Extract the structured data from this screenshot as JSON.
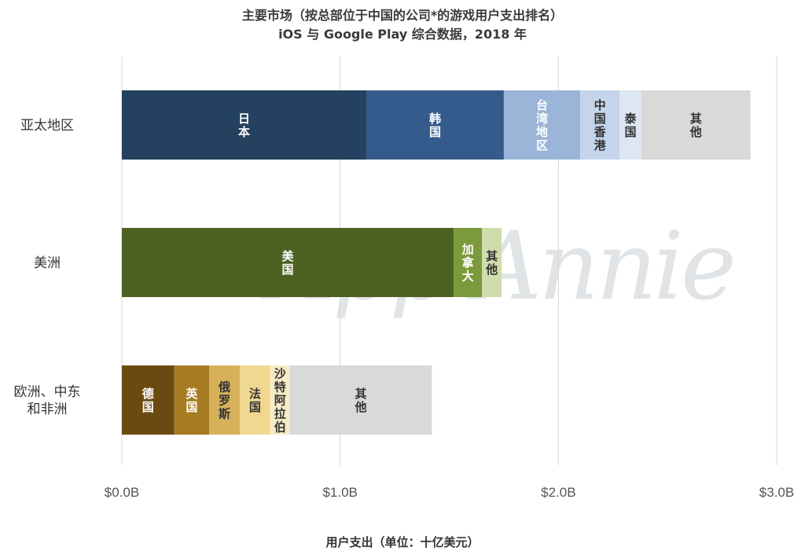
{
  "title": "主要市场（按总部位于中国的公司*的游戏用户支出排名）",
  "subtitle": "iOS 与 Google Play 综合数据，2018 年",
  "watermark": "App Annie",
  "chart_data": {
    "type": "bar",
    "orientation": "horizontal",
    "stacked": true,
    "xlabel": "用户支出（单位：十亿美元）",
    "xlim": [
      0,
      3.0
    ],
    "xticks": [
      {
        "value": 0,
        "label": "$0.0B"
      },
      {
        "value": 1.0,
        "label": "$1.0B"
      },
      {
        "value": 2.0,
        "label": "$2.0B"
      },
      {
        "value": 3.0,
        "label": "$3.0B"
      }
    ],
    "grid": true,
    "categories": [
      {
        "label": "亚太地区",
        "segments": [
          {
            "name": "日本",
            "value": 1.12,
            "color": "#24415f",
            "text_color": "#ffffff"
          },
          {
            "name": "韩国",
            "value": 0.63,
            "color": "#355b8c",
            "text_color": "#ffffff"
          },
          {
            "name": "台湾地区",
            "value": 0.35,
            "color": "#9bb5d9",
            "text_color": "#ffffff"
          },
          {
            "name": "中国香港",
            "value": 0.18,
            "color": "#c4d4ea",
            "text_color": "#333333"
          },
          {
            "name": "泰国",
            "value": 0.1,
            "color": "#dde6f3",
            "text_color": "#333333"
          },
          {
            "name": "其他",
            "value": 0.5,
            "color": "#d9d9d9",
            "text_color": "#333333"
          }
        ]
      },
      {
        "label": "美洲",
        "segments": [
          {
            "name": "美国",
            "value": 1.52,
            "color": "#4d6123",
            "text_color": "#ffffff"
          },
          {
            "name": "加拿大",
            "value": 0.13,
            "color": "#7b9a3c",
            "text_color": "#ffffff"
          },
          {
            "name": "其他",
            "value": 0.09,
            "color": "#cfdcab",
            "text_color": "#333333"
          }
        ]
      },
      {
        "label": "欧洲、中东\n和非洲",
        "segments": [
          {
            "name": "德国",
            "value": 0.24,
            "color": "#6b4a12",
            "text_color": "#ffffff"
          },
          {
            "name": "英国",
            "value": 0.16,
            "color": "#a67b22",
            "text_color": "#ffffff"
          },
          {
            "name": "俄罗斯",
            "value": 0.14,
            "color": "#d6b15a",
            "text_color": "#333333"
          },
          {
            "name": "法国",
            "value": 0.14,
            "color": "#f1d890",
            "text_color": "#333333"
          },
          {
            "name": "沙特阿拉伯",
            "value": 0.09,
            "color": "#f7ebc6",
            "text_color": "#333333"
          },
          {
            "name": "其他",
            "value": 0.65,
            "color": "#d9d9d9",
            "text_color": "#333333"
          }
        ]
      }
    ]
  }
}
